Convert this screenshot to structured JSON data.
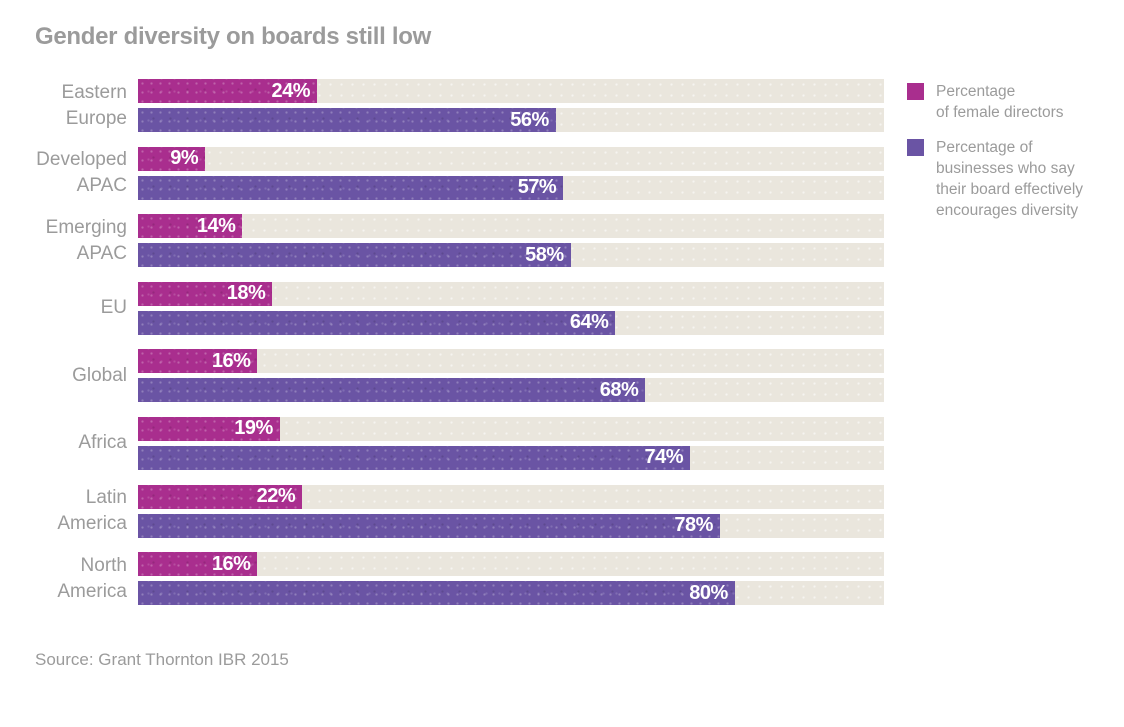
{
  "title": "Gender diversity on boards still low",
  "source": "Source: Grant Thornton IBR 2015",
  "colors": {
    "female": "#a92e8e",
    "board": "#6a54a4",
    "track": "#eae6dd",
    "gray_text": "#9b9b9b",
    "value_text": "#ffffff",
    "background": "#ffffff"
  },
  "legend": {
    "position": "right",
    "items": [
      {
        "key": "female",
        "color": "#a92e8e",
        "lines": [
          "Percentage",
          "of female directors"
        ]
      },
      {
        "key": "board",
        "color": "#6a54a4",
        "lines": [
          "Percentage of",
          "businesses who say",
          "their board effectively",
          "encourages diversity"
        ]
      }
    ]
  },
  "chart_data": {
    "type": "bar",
    "orientation": "horizontal",
    "title": "Gender diversity on boards still low",
    "categories": [
      "Eastern Europe",
      "Developed APAC",
      "Emerging APAC",
      "EU",
      "Global",
      "Africa",
      "Latin America",
      "North America"
    ],
    "category_label_lines": [
      [
        "Eastern",
        "Europe"
      ],
      [
        "Developed",
        "APAC"
      ],
      [
        "Emerging",
        "APAC"
      ],
      [
        "EU"
      ],
      [
        "Global"
      ],
      [
        "Africa"
      ],
      [
        "Latin",
        "America"
      ],
      [
        "North",
        "America"
      ]
    ],
    "series": [
      {
        "key": "female",
        "name": "Percentage of female directors",
        "color": "#a92e8e",
        "values": [
          24,
          9,
          14,
          18,
          16,
          19,
          22,
          16
        ]
      },
      {
        "key": "board",
        "name": "Percentage of businesses who say their board effectively encourages diversity",
        "color": "#6a54a4",
        "values": [
          56,
          57,
          58,
          64,
          68,
          74,
          78,
          80
        ]
      }
    ],
    "xlim": [
      0,
      100
    ],
    "value_label_format": "{value}%",
    "grid": false,
    "legend_position": "right",
    "source": "Source: Grant Thornton IBR 2015"
  }
}
